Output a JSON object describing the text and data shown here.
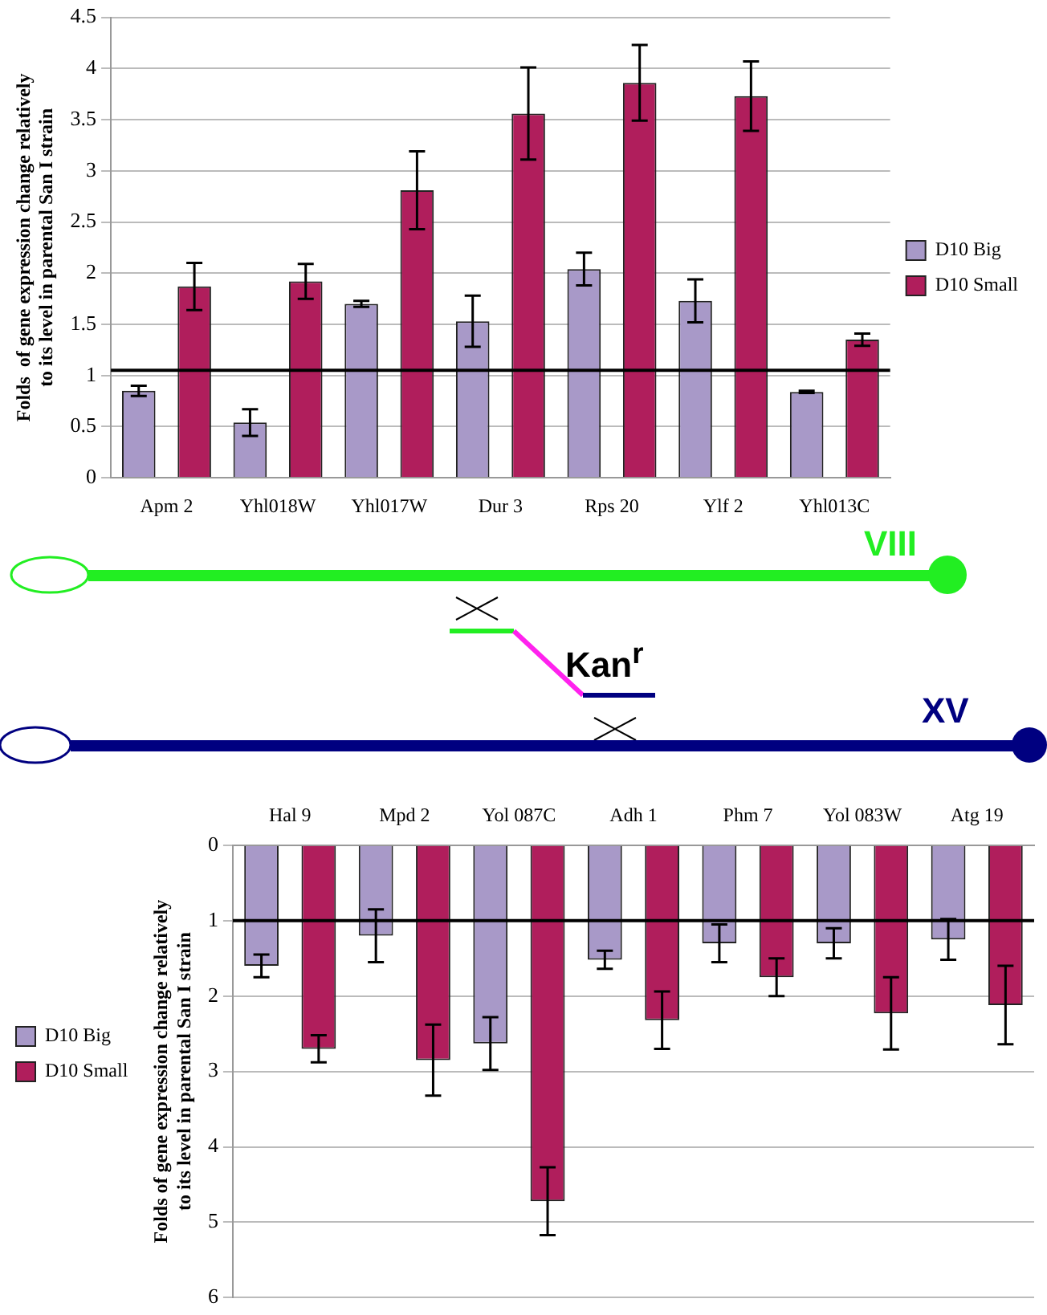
{
  "chart_data": [
    {
      "type": "bar",
      "ylabel": "Folds  of gene expression change relatively to its level in parental San I strain",
      "categories": [
        "Apm 2",
        "Yhl018W",
        "Yhl017W",
        "Dur 3",
        "Rps 20",
        "Ylf 2",
        "Yhl013C"
      ],
      "series": [
        {
          "name": "D10 Big",
          "color": "#a899c8",
          "values": [
            0.85,
            0.54,
            1.7,
            1.53,
            2.04,
            1.73,
            0.84
          ],
          "errors": [
            0.05,
            0.13,
            0.03,
            0.25,
            0.16,
            0.21,
            0.01
          ]
        },
        {
          "name": "D10 Small",
          "color": "#b01e5c",
          "values": [
            1.87,
            1.92,
            2.81,
            3.56,
            3.86,
            3.73,
            1.35
          ],
          "errors": [
            0.23,
            0.17,
            0.38,
            0.45,
            0.37,
            0.34,
            0.06
          ]
        }
      ],
      "ylim": [
        0,
        4.5
      ],
      "yticks": [
        0,
        0.5,
        1,
        1.5,
        2,
        2.5,
        3,
        3.5,
        4,
        4.5
      ],
      "grid": "y",
      "legend": "right",
      "ref_lines": [
        {
          "axis": "y",
          "value": 1.05,
          "color": "#000000"
        }
      ]
    },
    {
      "type": "other",
      "annotations": [
        "VIII",
        "Kan$^{r}$",
        "XV"
      ]
    },
    {
      "type": "bar",
      "ylabel": "Folds of gene expression change relatively to its level in parental San I strain",
      "categories": [
        "Hal 9",
        "Mpd 2",
        "Yol 087C",
        "Adh 1",
        "Phm 7",
        "Yol 083W",
        "Atg 19"
      ],
      "series": [
        {
          "name": "D10 Big",
          "color": "#a899c8",
          "values": [
            1.6,
            1.2,
            2.63,
            1.52,
            1.3,
            1.3,
            1.25
          ],
          "errors": [
            0.15,
            0.35,
            0.35,
            0.12,
            0.25,
            0.2,
            0.27
          ]
        },
        {
          "name": "D10 Small",
          "color": "#b01e5c",
          "values": [
            2.7,
            2.85,
            4.72,
            2.32,
            1.75,
            2.23,
            2.12
          ],
          "errors": [
            0.18,
            0.47,
            0.45,
            0.38,
            0.25,
            0.48,
            0.52
          ]
        }
      ],
      "ylim": [
        6,
        0
      ],
      "yticks": [
        0,
        1,
        2,
        3,
        4,
        5,
        6
      ],
      "grid": "y",
      "legend": "left",
      "ref_lines": [
        {
          "axis": "y",
          "value": 1,
          "color": "#000000"
        }
      ]
    }
  ]
}
